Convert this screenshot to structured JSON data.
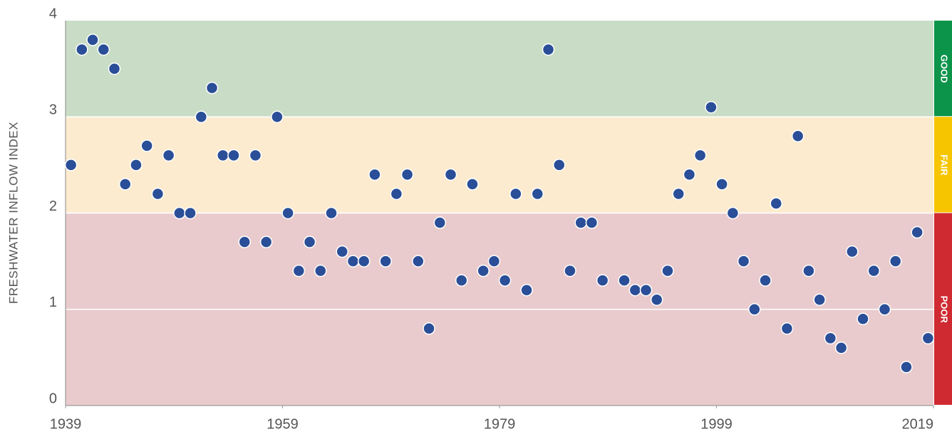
{
  "chart_data": {
    "type": "scatter",
    "y_label": "FRESHWATER INFLOW INDEX",
    "xlim": [
      1939,
      2019
    ],
    "xticks": [
      1939,
      1959,
      1979,
      1999,
      2019
    ],
    "ylim": [
      0,
      4
    ],
    "yticks": [
      0,
      1,
      2,
      3,
      4
    ],
    "grid": true,
    "color": "#2a4e97",
    "bands": [
      {
        "label": "GOOD",
        "from": 3,
        "to": 4,
        "color": "#c9ddc6",
        "label_color": "#0b944a"
      },
      {
        "label": "FAIR",
        "from": 2,
        "to": 3,
        "color": "#fcebcf",
        "label_color": "#f6c500"
      },
      {
        "label": "POOR",
        "from": 0,
        "to": 2,
        "color": "#e9cbcd",
        "label_color": "#cf2a31"
      }
    ],
    "x": [
      1939.5,
      1940.5,
      1941.5,
      1942.5,
      1943.5,
      1944.5,
      1945.5,
      1946.5,
      1947.5,
      1948.5,
      1949.5,
      1950.5,
      1951.5,
      1952.5,
      1953.5,
      1954.5,
      1955.5,
      1956.5,
      1957.5,
      1958.5,
      1959.5,
      1960.5,
      1961.5,
      1962.5,
      1963.5,
      1964.5,
      1965.5,
      1966.5,
      1967.5,
      1968.5,
      1969.5,
      1970.5,
      1971.5,
      1972.5,
      1973.5,
      1974.5,
      1975.5,
      1976.5,
      1977.5,
      1978.5,
      1979.5,
      1980.5,
      1981.5,
      1982.5,
      1983.5,
      1984.5,
      1985.5,
      1986.5,
      1987.5,
      1988.5,
      1990.5,
      1991.5,
      1992.5,
      1993.5,
      1994.5,
      1995.5,
      1996.5,
      1997.5,
      1998.5,
      1999.5,
      2000.5,
      2001.5,
      2002.5,
      2003.5,
      2004.5,
      2005.5,
      2006.5,
      2007.5,
      2008.5,
      2009.5,
      2010.5,
      2011.5,
      2012.5,
      2013.5,
      2014.5,
      2015.5,
      2016.5,
      2017.5,
      2018.5
    ],
    "values": [
      2.5,
      3.7,
      3.8,
      3.7,
      3.5,
      2.3,
      2.5,
      2.7,
      2.2,
      2.6,
      2.0,
      2.0,
      3.0,
      3.3,
      2.6,
      2.6,
      1.7,
      2.6,
      1.7,
      3.0,
      2.0,
      1.4,
      1.7,
      1.4,
      2.0,
      1.6,
      1.5,
      1.5,
      2.4,
      1.5,
      2.2,
      2.4,
      1.5,
      0.8,
      1.9,
      2.4,
      1.3,
      2.3,
      1.4,
      1.5,
      1.3,
      2.2,
      1.2,
      2.2,
      3.7,
      2.5,
      1.4,
      1.9,
      1.9,
      1.3,
      1.3,
      1.2,
      1.2,
      1.1,
      1.4,
      2.2,
      2.4,
      2.6,
      3.1,
      2.3,
      2.0,
      1.5,
      1.0,
      1.3,
      2.1,
      0.8,
      2.8,
      1.4,
      1.1,
      0.7,
      0.6,
      1.6,
      0.9,
      1.4,
      1.0,
      1.5,
      0.4,
      1.8,
      0.7
    ]
  }
}
